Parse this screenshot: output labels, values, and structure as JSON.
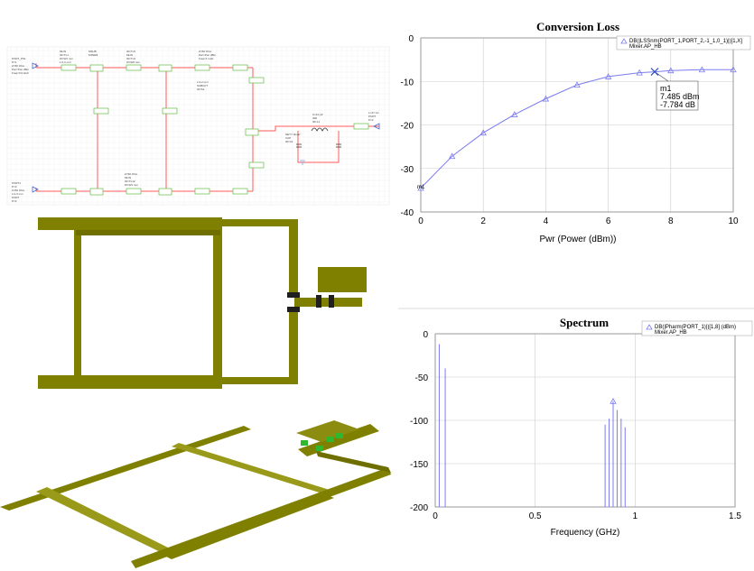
{
  "colors": {
    "trace": "#7b7bf0",
    "grid": "#cccccc",
    "substrate": "#808000",
    "wire": "#ff5a5a",
    "component": "#2e8b2e"
  },
  "chart_data": [
    {
      "type": "line",
      "title": "Conversion Loss",
      "xlabel": "Pwr (Power (dBm))",
      "ylabel": "",
      "xlim": [
        0,
        10
      ],
      "ylim": [
        -40,
        0
      ],
      "xticks": [
        "0",
        "2",
        "4",
        "6",
        "8",
        "10"
      ],
      "yticks": [
        "0",
        "-10",
        "-20",
        "-30",
        "-40"
      ],
      "legend": {
        "line1": "DB(|LSSnm(PORT_1,PORT_2,-1_1,0_1)|)[1,X]",
        "line2": "Mixer.AP_HB"
      },
      "series": [
        {
          "name": "DB(|LSSnm(PORT_1,PORT_2,-1_1,0_1)|)[1,X]",
          "x": [
            0,
            1,
            2,
            3,
            4,
            5,
            6,
            7,
            7.485,
            8,
            9,
            10
          ],
          "y": [
            -34.5,
            -27.2,
            -21.8,
            -17.6,
            -14.0,
            -10.8,
            -8.9,
            -8.0,
            -7.784,
            -7.5,
            -7.3,
            -7.3
          ]
        }
      ],
      "markers": [
        {
          "name": "m1",
          "x": 7.485,
          "y": -7.784,
          "line1": "7.485 dBm",
          "line2": "-7.784 dB"
        }
      ]
    },
    {
      "type": "bar",
      "title": "Spectrum",
      "xlabel": "Frequency (GHz)",
      "ylabel": "",
      "xlim": [
        0,
        1.5
      ],
      "ylim": [
        -200,
        0
      ],
      "xticks": [
        "0",
        "0.5",
        "1",
        "1.5"
      ],
      "yticks": [
        "0",
        "-50",
        "-100",
        "-150",
        "-200"
      ],
      "legend": {
        "line1": "DB(|Pharm(PORT_1)|)[1,8] (dBm)",
        "line2": "Mixer.AP_HB"
      },
      "series": [
        {
          "name": "DB(|Pharm(PORT_1)|)[1,8] (dBm)",
          "x": [
            0.02,
            0.05,
            0.85,
            0.87,
            0.89,
            0.91,
            0.93,
            0.95
          ],
          "y": [
            -12,
            -40,
            -105,
            -98,
            -78,
            -88,
            -98,
            -108
          ]
        }
      ]
    }
  ],
  "schematic": {
    "labels": [
      "PORT_PS1",
      "P=1",
      "Z=50 Ohm",
      "Pwr=Pwr dBm",
      "Freq=0.9 GHz",
      "PORT1",
      "P=3",
      "Z=50 Ohm",
      "MLIN",
      "ID=TL1",
      "W=W1 mm",
      "L=L1 mm",
      "MSUB",
      "MTEE$",
      "ID=TL5",
      "MLIN",
      "ID=TL9",
      "W=W2 mm",
      "L=L2 mm",
      "SUBCKT",
      "ID=S1",
      "NET=\"diode\"",
      "CAP",
      "ID=C1",
      "C=10 pF",
      "IND",
      "ID=L1",
      "L=47 nH",
      "PORT",
      "P=2",
      "Z=50 Ohm",
      "MLIN",
      "ID=TL12",
      "W=W1 mm",
      "L=L3 mm",
      "PORT",
      "P=3",
      "Z=50 Ohm",
      "Pwr=Pwr dBm",
      "Freq=1 GHz"
    ]
  }
}
